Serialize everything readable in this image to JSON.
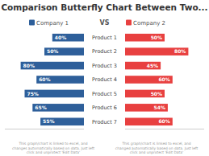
{
  "chart_data": {
    "type": "bar",
    "orientation": "horizontal",
    "title": "Comparison Butterfly Chart Between Two...",
    "categories": [
      "Product 1",
      "Product 2",
      "Product 3",
      "Product 4",
      "Product 5",
      "Product 6",
      "Product 7"
    ],
    "series": [
      {
        "name": "Company 1",
        "color": "#2E5F9A",
        "values": [
          40,
          50,
          80,
          60,
          75,
          65,
          55
        ],
        "value_labels": [
          "40%",
          "50%",
          "80%",
          "60%",
          "75%",
          "65%",
          "55%"
        ]
      },
      {
        "name": "Company 2",
        "color": "#E84040",
        "values": [
          50,
          80,
          45,
          60,
          50,
          54,
          60
        ],
        "value_labels": [
          "50%",
          "80%",
          "45%",
          "60%",
          "50%",
          "54%",
          "60%"
        ]
      }
    ],
    "xlim": [
      0,
      100
    ],
    "data_labels": true,
    "legend": "top",
    "tick_labels": "y",
    "annotations": [
      "VS",
      "This graph/chart is linked to excel, and\nchanges automatically based on data. Just left\nclick and unprotect 'Edit Data'",
      "This graph/chart is linked to excel, and\nchanged automatically based on data. Just left\nclick and unprotect 'Edit Data'"
    ]
  }
}
